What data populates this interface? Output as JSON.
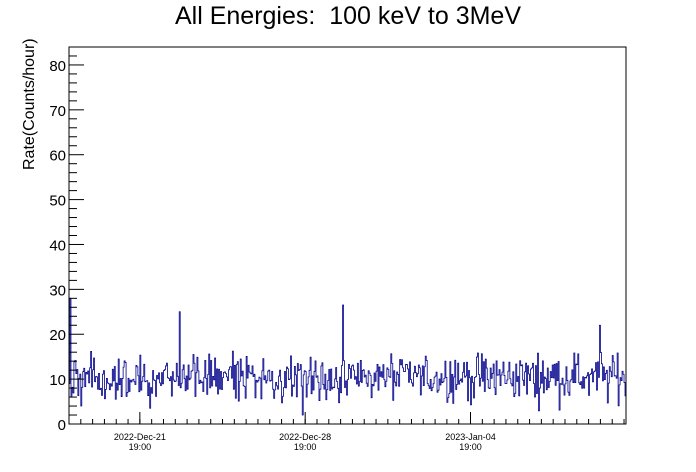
{
  "chart_data": {
    "type": "line",
    "title": "All Energies:  100 keV to 3MeV",
    "xlabel": "",
    "ylabel": "Rate(Counts/hour)",
    "ylim": [
      0,
      84
    ],
    "yticks": [
      0,
      10,
      20,
      30,
      40,
      50,
      60,
      70,
      80
    ],
    "x_range": [
      "2022-Dec-18 19:00",
      "2023-Jan-11 09:00"
    ],
    "xticks": [
      {
        "x": "2022-Dec-21 19:00",
        "date": "2022-Dec-21",
        "time": "19:00"
      },
      {
        "x": "2022-Dec-28 19:00",
        "date": "2022-Dec-28",
        "time": "19:00"
      },
      {
        "x": "2023-Jan-04 19:00",
        "date": "2023-Jan-04",
        "time": "19:00"
      }
    ],
    "grid": false,
    "legend": "none",
    "series": [
      {
        "color": "#00008b",
        "binning": "hourly",
        "typical_range": [
          5,
          18
        ],
        "mean": 10.5,
        "notable_points": [
          {
            "x": "2022-Dec-18 20:00",
            "y": 28
          },
          {
            "x": "2022-Dec-23 11:00",
            "y": 25
          },
          {
            "x": "2022-Dec-28 16:00",
            "y": 2
          },
          {
            "x": "2022-Dec-30 09:00",
            "y": 26.5
          },
          {
            "x": "2023-Jan-10 06:00",
            "y": 22
          }
        ]
      }
    ]
  }
}
